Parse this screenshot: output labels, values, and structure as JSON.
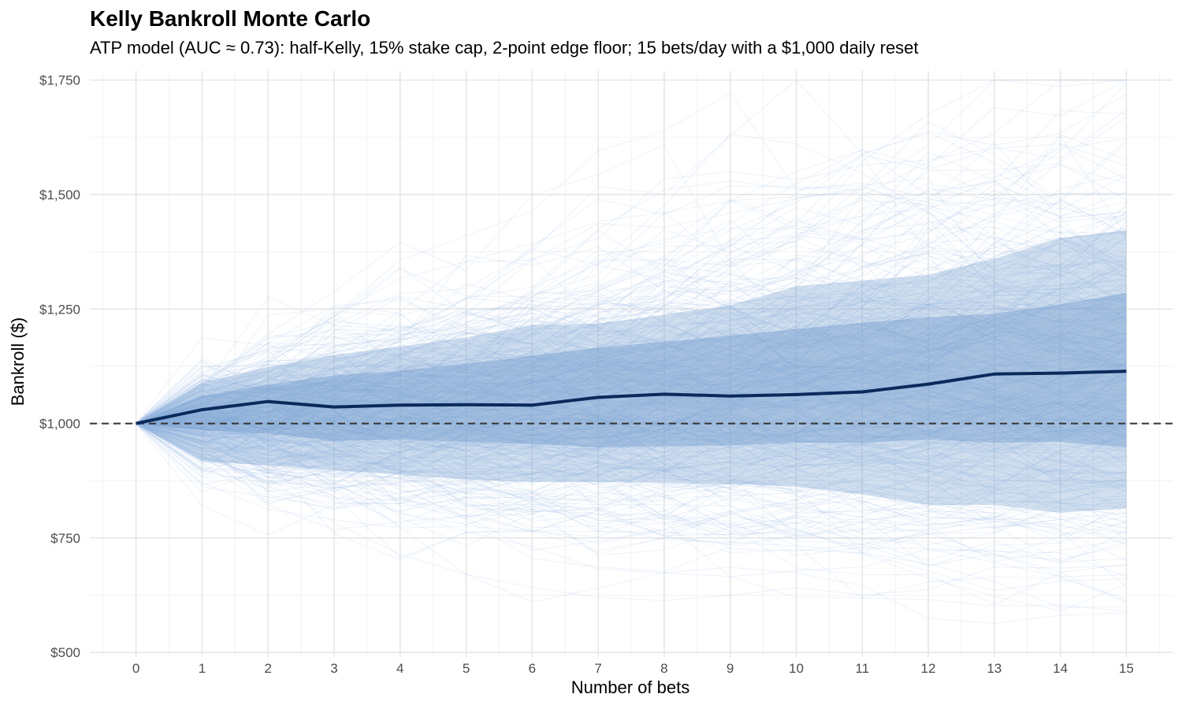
{
  "chart_data": {
    "type": "line",
    "title": "Kelly Bankroll Monte Carlo",
    "subtitle": "ATP model (AUC ≈ 0.73): half-Kelly, 15% stake cap, 2-point edge floor; 15 bets/day with a $1,000 daily reset",
    "xlabel": "Number of bets",
    "ylabel": "Bankroll ($)",
    "x": [
      0,
      1,
      2,
      3,
      4,
      5,
      6,
      7,
      8,
      9,
      10,
      11,
      12,
      13,
      14,
      15
    ],
    "x_tick_labels": [
      "0",
      "1",
      "2",
      "3",
      "4",
      "5",
      "6",
      "7",
      "8",
      "9",
      "10",
      "11",
      "12",
      "13",
      "14",
      "15"
    ],
    "y_tick_values": [
      500,
      750,
      1000,
      1250,
      1500,
      1750
    ],
    "y_tick_labels": [
      "$500",
      "$750",
      "$1,000",
      "$1,250",
      "$1,500",
      "$1,750"
    ],
    "xlim": [
      -0.7,
      15.7
    ],
    "ylim": [
      490,
      1770
    ],
    "grid": true,
    "reference_line": {
      "y": 1000,
      "style": "dashed"
    },
    "median": [
      1000,
      1030,
      1048,
      1036,
      1040,
      1041,
      1040,
      1057,
      1064,
      1060,
      1063,
      1069,
      1086,
      1108,
      1110,
      1114
    ],
    "band_inner": {
      "lower": [
        1000,
        985,
        978,
        962,
        965,
        960,
        955,
        948,
        950,
        952,
        958,
        958,
        965,
        958,
        960,
        948
      ],
      "upper": [
        1000,
        1060,
        1085,
        1105,
        1115,
        1130,
        1148,
        1166,
        1178,
        1192,
        1206,
        1220,
        1232,
        1240,
        1260,
        1285
      ]
    },
    "band_outer": {
      "lower": [
        1000,
        918,
        908,
        898,
        888,
        878,
        872,
        872,
        870,
        868,
        862,
        845,
        822,
        822,
        805,
        815
      ],
      "upper": [
        1000,
        1090,
        1122,
        1150,
        1168,
        1188,
        1215,
        1218,
        1238,
        1258,
        1300,
        1312,
        1325,
        1360,
        1405,
        1422
      ]
    },
    "simulated_paths": 400,
    "colors": {
      "median": "#0b2a5c",
      "band": "#6f9bcc",
      "paths": "#a9c3e6",
      "reference": "#333333",
      "grid_major": "#e6e6e6",
      "grid_minor": "#f2f2f2"
    }
  }
}
